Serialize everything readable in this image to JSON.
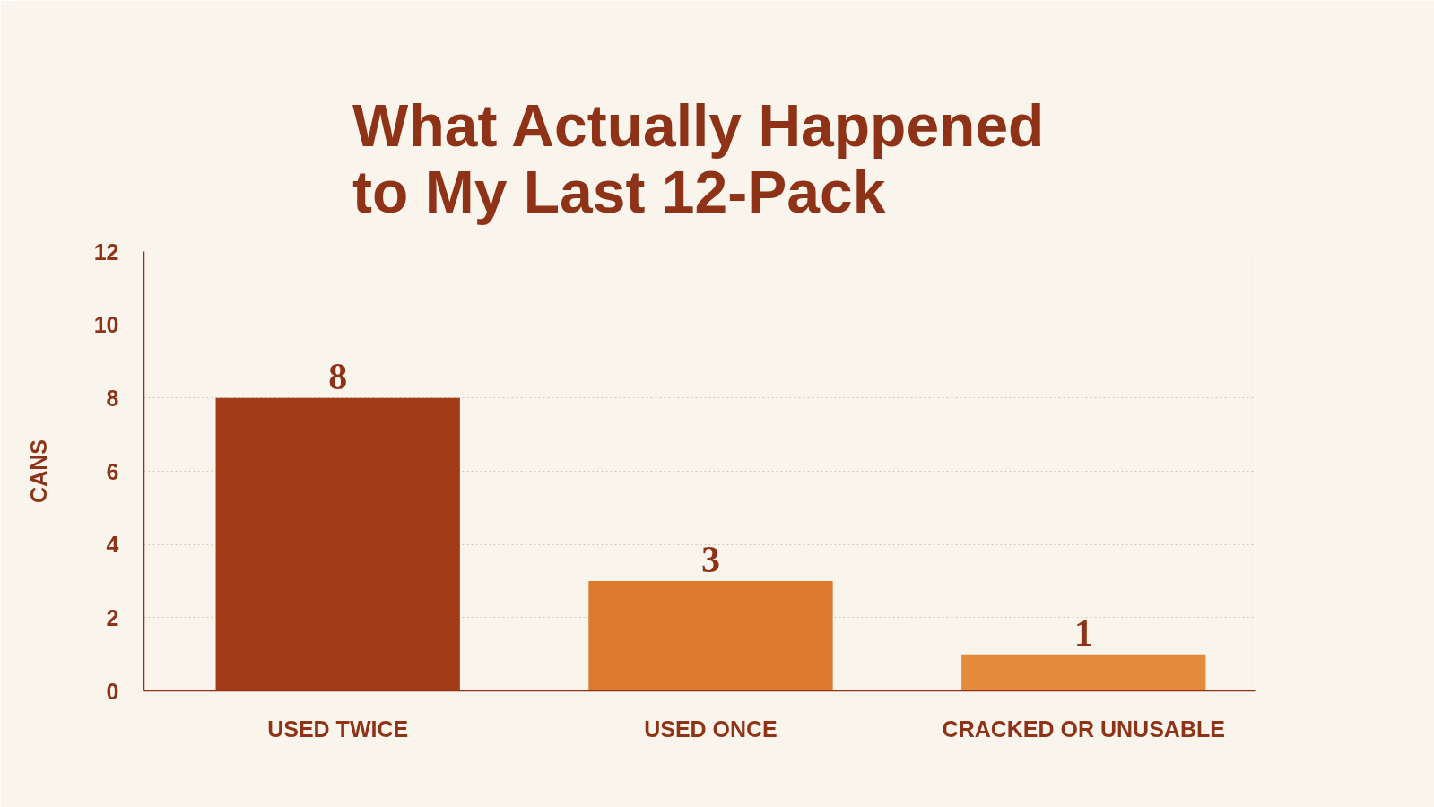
{
  "chart_data": {
    "type": "bar",
    "title": "What Actually Happened\nto My Last 12-Pack",
    "ylabel": "CANS",
    "categories": [
      "USED TWICE",
      "USED ONCE",
      "CRACKED OR UNUSABLE"
    ],
    "values": [
      8,
      3,
      1
    ],
    "colors": [
      "#a33b18",
      "#de7a2e",
      "#e38a3b"
    ],
    "ylim": [
      0,
      12
    ],
    "yticks": [
      0,
      2,
      4,
      6,
      8,
      10,
      12
    ],
    "grid": "y",
    "data_labels": true
  }
}
